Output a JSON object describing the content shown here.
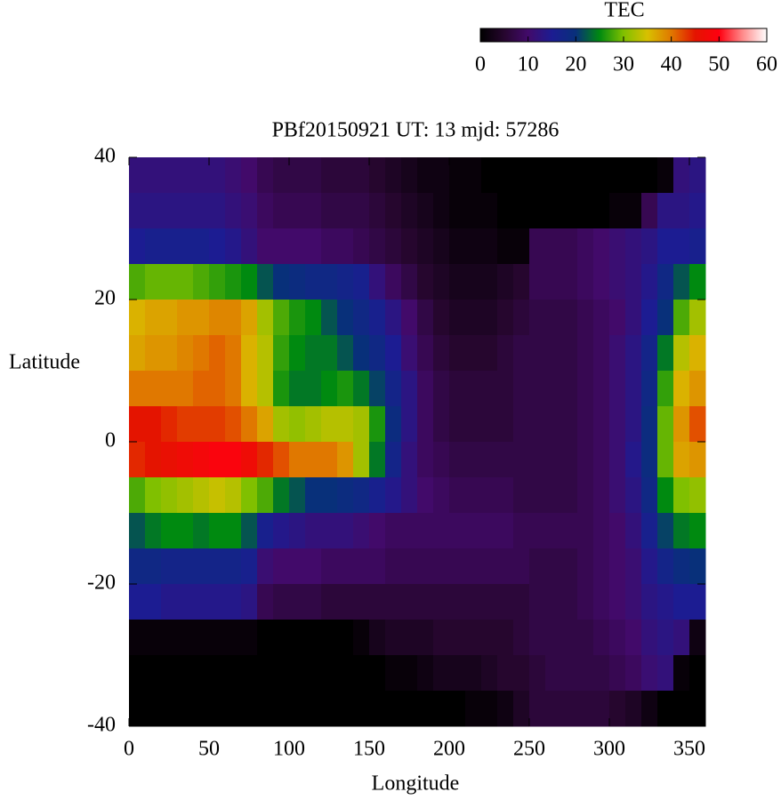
{
  "chart_data": {
    "type": "heatmap",
    "title": "PBf20150921  UT: 13  mjd: 57286",
    "x_label": "Longitude",
    "y_label": "Latitude",
    "colorbar_label": "TEC",
    "xlim": [
      0,
      360
    ],
    "ylim": [
      -40,
      40
    ],
    "zlim": [
      0,
      60
    ],
    "xticks": [
      0,
      50,
      100,
      150,
      200,
      250,
      300,
      350
    ],
    "yticks": [
      -40,
      -20,
      0,
      20,
      40
    ],
    "zticks": [
      0,
      10,
      20,
      30,
      40,
      50,
      60
    ],
    "colorscale": [
      "#000000",
      "#26062e",
      "#420a6a",
      "#1c1c92",
      "#08307a",
      "#008a10",
      "#80c000",
      "#d8c000",
      "#e07800",
      "#e41400",
      "#ff0010",
      "#ff8c8c",
      "#ffffff"
    ],
    "x": [
      5,
      15,
      25,
      35,
      45,
      55,
      65,
      75,
      85,
      95,
      105,
      115,
      125,
      135,
      145,
      155,
      165,
      175,
      185,
      195,
      205,
      215,
      225,
      235,
      245,
      255,
      265,
      275,
      285,
      295,
      305,
      315,
      325,
      335,
      345,
      355
    ],
    "y": [
      37.5,
      32.5,
      27.5,
      22.5,
      17.5,
      12.5,
      7.5,
      2.5,
      -2.5,
      -7.5,
      -12.5,
      -17.5,
      -22.5,
      -27.5,
      -32.5,
      -37.5
    ],
    "z": [
      [
        12,
        12,
        12,
        12,
        12,
        12,
        11,
        10,
        8,
        7,
        7,
        7,
        6,
        6,
        6,
        5,
        4,
        3,
        2,
        2,
        1,
        1,
        0,
        0,
        0,
        0,
        0,
        0,
        0,
        0,
        0,
        0,
        0,
        1,
        12,
        13
      ],
      [
        13,
        13,
        13,
        13,
        13,
        13,
        12,
        11,
        9,
        8,
        8,
        8,
        7,
        7,
        7,
        6,
        5,
        4,
        3,
        2,
        1,
        1,
        1,
        0,
        0,
        0,
        0,
        0,
        0,
        0,
        1,
        1,
        8,
        13,
        13,
        14
      ],
      [
        15,
        16,
        16,
        16,
        16,
        15,
        14,
        12,
        10,
        10,
        10,
        10,
        9,
        9,
        8,
        7,
        6,
        5,
        4,
        3,
        2,
        2,
        2,
        1,
        1,
        8,
        8,
        8,
        9,
        10,
        11,
        12,
        13,
        15,
        15,
        16
      ],
      [
        28,
        29,
        29,
        29,
        28,
        27,
        26,
        25,
        22,
        20,
        19,
        18,
        18,
        17,
        16,
        12,
        9,
        7,
        5,
        4,
        3,
        3,
        3,
        4,
        5,
        8,
        8,
        8,
        9,
        10,
        11,
        12,
        14,
        18,
        22,
        25
      ],
      [
        36,
        37,
        37,
        38,
        38,
        39,
        39,
        37,
        32,
        28,
        26,
        25,
        22,
        20,
        18,
        16,
        13,
        10,
        7,
        5,
        4,
        4,
        4,
        5,
        6,
        7,
        7,
        7,
        8,
        9,
        10,
        12,
        15,
        20,
        28,
        32
      ],
      [
        37,
        38,
        38,
        39,
        40,
        41,
        40,
        36,
        33,
        27,
        25,
        24,
        24,
        22,
        20,
        18,
        15,
        11,
        8,
        6,
        5,
        5,
        5,
        6,
        7,
        7,
        7,
        7,
        8,
        9,
        11,
        13,
        17,
        24,
        33,
        36
      ],
      [
        40,
        40,
        40,
        40,
        41,
        41,
        40,
        36,
        33,
        26,
        24,
        24,
        25,
        26,
        24,
        21,
        17,
        13,
        9,
        7,
        6,
        6,
        6,
        6,
        7,
        7,
        7,
        7,
        8,
        9,
        11,
        13,
        18,
        27,
        36,
        38
      ],
      [
        45,
        45,
        44,
        43,
        43,
        43,
        42,
        40,
        37,
        32,
        31,
        32,
        33,
        33,
        32,
        26,
        19,
        13,
        9,
        7,
        6,
        6,
        6,
        6,
        7,
        7,
        7,
        7,
        8,
        9,
        11,
        13,
        19,
        29,
        38,
        42
      ],
      [
        44,
        45,
        46,
        47,
        48,
        49,
        49,
        47,
        44,
        42,
        40,
        40,
        40,
        38,
        32,
        24,
        17,
        12,
        9,
        8,
        7,
        7,
        7,
        7,
        7,
        7,
        7,
        7,
        8,
        9,
        11,
        14,
        19,
        29,
        37,
        38
      ],
      [
        28,
        30,
        31,
        32,
        33,
        34,
        33,
        30,
        28,
        24,
        22,
        20,
        20,
        19,
        18,
        16,
        14,
        12,
        10,
        9,
        8,
        8,
        8,
        8,
        7,
        7,
        7,
        7,
        8,
        9,
        11,
        13,
        18,
        25,
        30,
        31
      ],
      [
        22,
        24,
        25,
        25,
        24,
        25,
        25,
        22,
        16,
        14,
        13,
        12,
        12,
        12,
        11,
        10,
        9,
        9,
        9,
        9,
        9,
        9,
        9,
        9,
        8,
        8,
        8,
        8,
        8,
        9,
        10,
        12,
        16,
        21,
        24,
        25
      ],
      [
        18,
        18,
        17,
        17,
        17,
        17,
        17,
        16,
        11,
        10,
        10,
        10,
        9,
        9,
        9,
        9,
        8,
        8,
        8,
        8,
        8,
        8,
        8,
        8,
        8,
        7,
        7,
        7,
        8,
        9,
        10,
        11,
        14,
        17,
        19,
        20
      ],
      [
        15,
        15,
        14,
        14,
        14,
        14,
        14,
        13,
        8,
        7,
        7,
        7,
        6,
        6,
        6,
        6,
        6,
        6,
        6,
        6,
        6,
        6,
        6,
        6,
        6,
        7,
        7,
        7,
        8,
        9,
        10,
        11,
        13,
        14,
        15,
        15
      ],
      [
        1,
        1,
        1,
        1,
        1,
        1,
        1,
        1,
        0,
        0,
        0,
        0,
        0,
        0,
        1,
        3,
        4,
        4,
        4,
        5,
        5,
        5,
        5,
        5,
        6,
        7,
        7,
        7,
        7,
        8,
        9,
        10,
        12,
        13,
        12,
        2
      ],
      [
        0,
        0,
        0,
        0,
        0,
        0,
        0,
        0,
        0,
        0,
        0,
        0,
        0,
        0,
        0,
        0,
        1,
        1,
        2,
        3,
        3,
        3,
        4,
        5,
        5,
        6,
        7,
        7,
        7,
        7,
        8,
        9,
        11,
        12,
        1,
        0
      ],
      [
        0,
        0,
        0,
        0,
        0,
        0,
        0,
        0,
        0,
        0,
        0,
        0,
        0,
        0,
        0,
        0,
        0,
        0,
        0,
        0,
        0,
        1,
        1,
        2,
        4,
        6,
        6,
        6,
        6,
        6,
        5,
        4,
        2,
        0,
        0,
        0
      ]
    ]
  }
}
